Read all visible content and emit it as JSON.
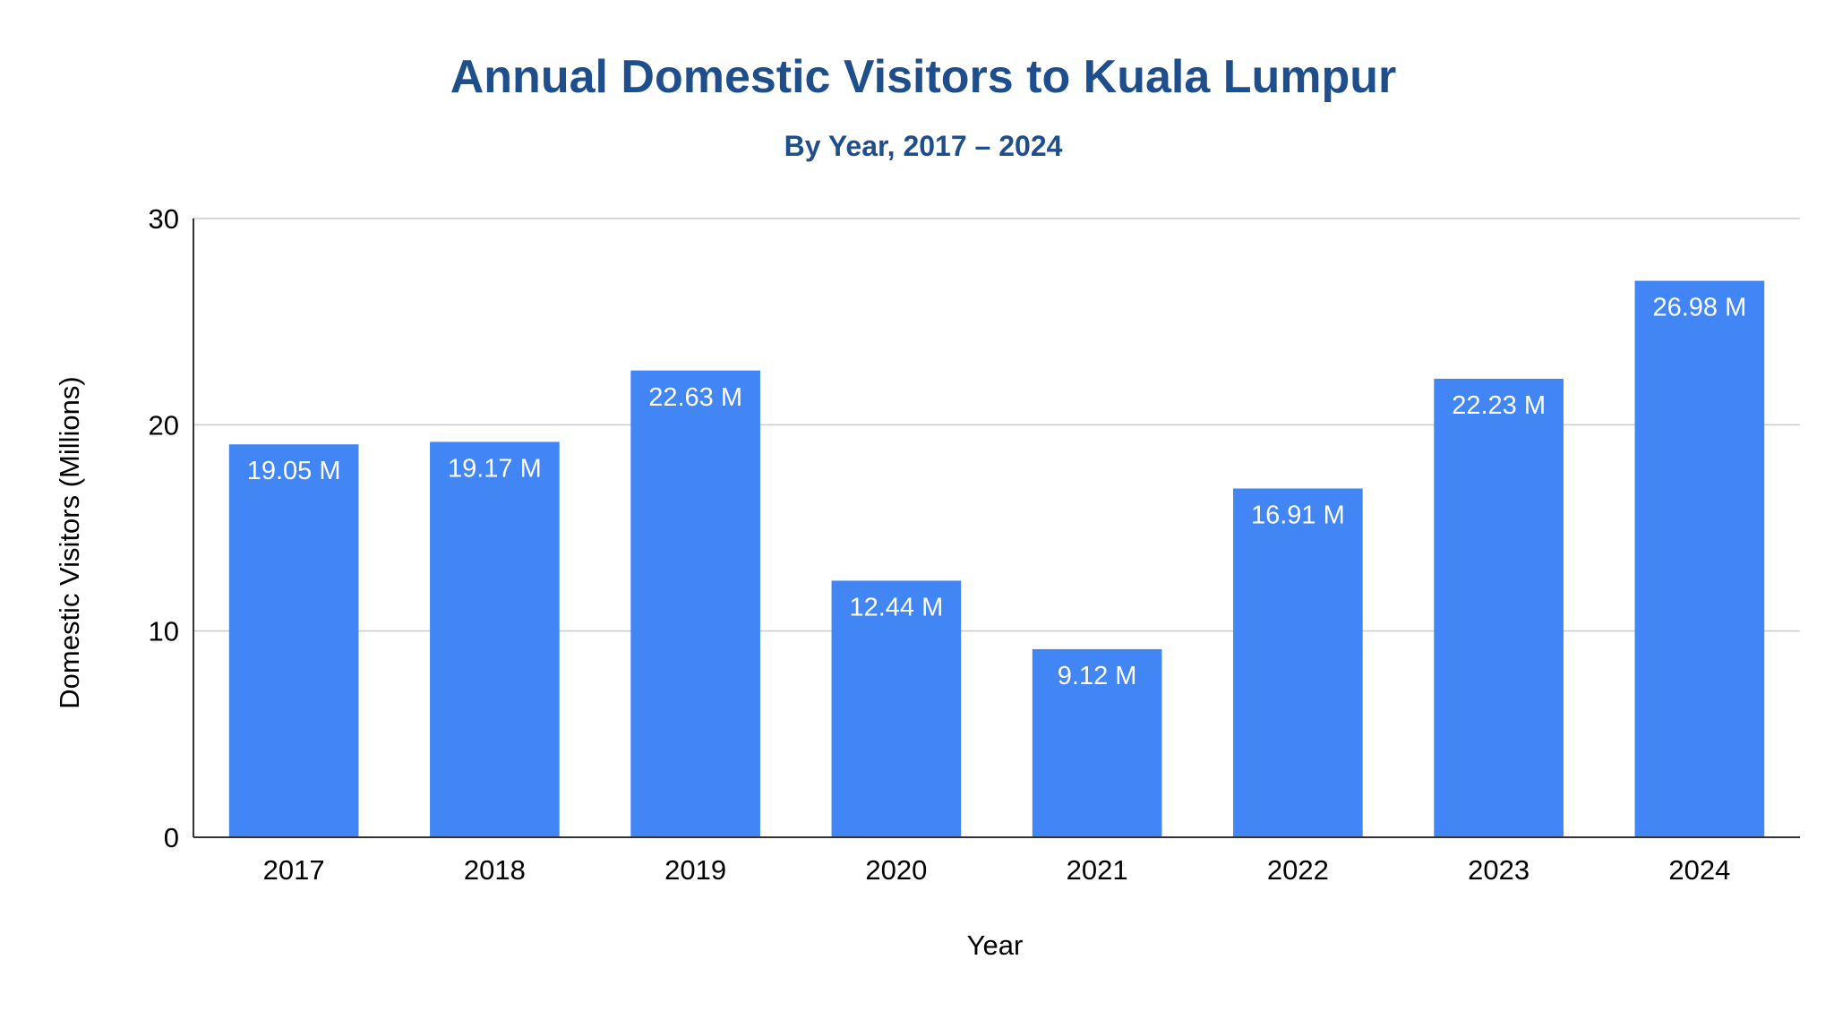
{
  "chart_data": {
    "type": "bar",
    "title": "Annual Domestic Visitors to Kuala Lumpur",
    "subtitle": "By Year, 2017 – 2024",
    "xlabel": "Year",
    "ylabel": "Domestic Visitors (Millions)",
    "categories": [
      "2017",
      "2018",
      "2019",
      "2020",
      "2021",
      "2022",
      "2023",
      "2024"
    ],
    "values": [
      19.05,
      19.17,
      22.63,
      12.44,
      9.12,
      16.91,
      22.23,
      26.98
    ],
    "data_labels": [
      "19.05 M",
      "19.17 M",
      "22.63 M",
      "12.44 M",
      "9.12 M",
      "16.91 M",
      "22.23 M",
      "26.98 M"
    ],
    "ylim": [
      0,
      30
    ],
    "yticks": [
      0,
      10,
      20,
      30
    ],
    "grid": true,
    "legend": "none",
    "colors": {
      "bar": "#4285f4",
      "title": "#1f4e8c",
      "axis_text": "#000000",
      "grid": "#cccccc",
      "data_label": "#ffffff"
    }
  }
}
